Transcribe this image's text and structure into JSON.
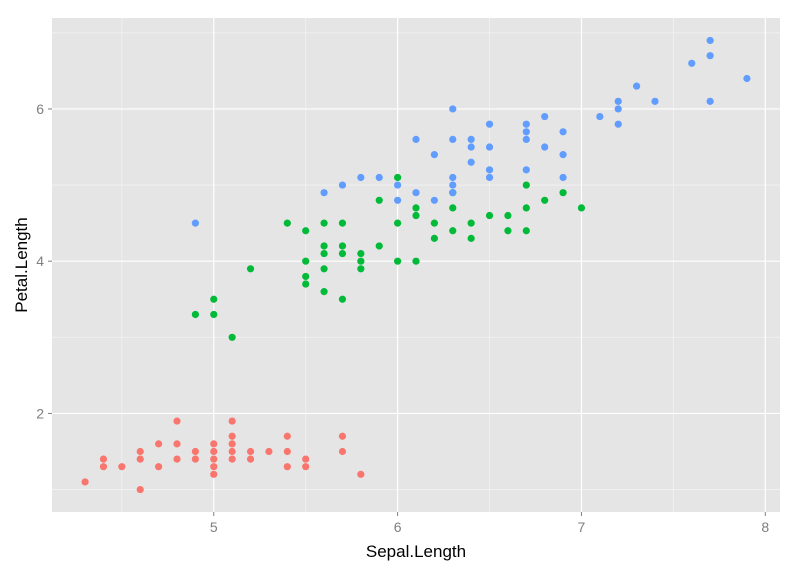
{
  "chart_data": {
    "type": "scatter",
    "title": "",
    "xlabel": "Sepal.Length",
    "ylabel": "Petal.Length",
    "xlim": [
      4.12,
      8.08
    ],
    "ylim": [
      0.705,
      7.195
    ],
    "x_ticks": [
      5,
      6,
      7,
      8
    ],
    "y_ticks": [
      2,
      4,
      6
    ],
    "x_tick_labels": [
      "5",
      "6",
      "7",
      "8"
    ],
    "y_tick_labels": [
      "2",
      "4",
      "6"
    ],
    "grid": true,
    "legend": "none",
    "panel_background": "#e5e5e5",
    "grid_color": "#ffffff",
    "series": [
      {
        "color": "#f8766d",
        "points": [
          [
            4.3,
            1.1
          ],
          [
            4.4,
            1.3
          ],
          [
            4.4,
            1.4
          ],
          [
            4.5,
            1.3
          ],
          [
            4.6,
            1.0
          ],
          [
            4.6,
            1.4
          ],
          [
            4.6,
            1.5
          ],
          [
            4.7,
            1.3
          ],
          [
            4.7,
            1.6
          ],
          [
            4.8,
            1.4
          ],
          [
            4.8,
            1.6
          ],
          [
            4.8,
            1.9
          ],
          [
            4.9,
            1.4
          ],
          [
            4.9,
            1.5
          ],
          [
            5.0,
            1.2
          ],
          [
            5.0,
            1.3
          ],
          [
            5.0,
            1.4
          ],
          [
            5.0,
            1.5
          ],
          [
            5.0,
            1.6
          ],
          [
            5.1,
            1.4
          ],
          [
            5.1,
            1.5
          ],
          [
            5.1,
            1.6
          ],
          [
            5.1,
            1.7
          ],
          [
            5.1,
            1.9
          ],
          [
            5.2,
            1.4
          ],
          [
            5.2,
            1.5
          ],
          [
            5.3,
            1.5
          ],
          [
            5.4,
            1.3
          ],
          [
            5.4,
            1.5
          ],
          [
            5.4,
            1.7
          ],
          [
            5.5,
            1.3
          ],
          [
            5.5,
            1.4
          ],
          [
            5.7,
            1.5
          ],
          [
            5.7,
            1.7
          ],
          [
            5.8,
            1.2
          ]
        ]
      },
      {
        "color": "#00ba38",
        "points": [
          [
            4.9,
            3.3
          ],
          [
            5.0,
            3.3
          ],
          [
            5.0,
            3.5
          ],
          [
            5.1,
            3.0
          ],
          [
            5.2,
            3.9
          ],
          [
            5.4,
            4.5
          ],
          [
            5.5,
            3.7
          ],
          [
            5.5,
            3.8
          ],
          [
            5.5,
            4.0
          ],
          [
            5.5,
            4.4
          ],
          [
            5.6,
            3.6
          ],
          [
            5.6,
            3.9
          ],
          [
            5.6,
            4.1
          ],
          [
            5.6,
            4.2
          ],
          [
            5.6,
            4.5
          ],
          [
            5.7,
            3.5
          ],
          [
            5.7,
            4.1
          ],
          [
            5.7,
            4.2
          ],
          [
            5.7,
            4.5
          ],
          [
            5.8,
            3.9
          ],
          [
            5.8,
            4.0
          ],
          [
            5.8,
            4.1
          ],
          [
            5.9,
            4.2
          ],
          [
            5.9,
            4.8
          ],
          [
            6.0,
            4.0
          ],
          [
            6.0,
            4.5
          ],
          [
            6.0,
            5.1
          ],
          [
            6.1,
            4.0
          ],
          [
            6.1,
            4.6
          ],
          [
            6.1,
            4.7
          ],
          [
            6.2,
            4.3
          ],
          [
            6.2,
            4.5
          ],
          [
            6.3,
            4.4
          ],
          [
            6.3,
            4.7
          ],
          [
            6.3,
            4.9
          ],
          [
            6.4,
            4.3
          ],
          [
            6.4,
            4.5
          ],
          [
            6.5,
            4.6
          ],
          [
            6.6,
            4.4
          ],
          [
            6.6,
            4.6
          ],
          [
            6.7,
            4.4
          ],
          [
            6.7,
            4.7
          ],
          [
            6.7,
            5.0
          ],
          [
            6.8,
            4.8
          ],
          [
            6.9,
            4.9
          ],
          [
            7.0,
            4.7
          ]
        ]
      },
      {
        "color": "#619cff",
        "points": [
          [
            4.9,
            4.5
          ],
          [
            5.6,
            4.9
          ],
          [
            5.7,
            5.0
          ],
          [
            5.8,
            5.1
          ],
          [
            5.9,
            5.1
          ],
          [
            6.0,
            4.8
          ],
          [
            6.0,
            5.0
          ],
          [
            6.1,
            4.9
          ],
          [
            6.1,
            5.6
          ],
          [
            6.2,
            4.8
          ],
          [
            6.2,
            5.4
          ],
          [
            6.3,
            4.9
          ],
          [
            6.3,
            5.0
          ],
          [
            6.3,
            5.1
          ],
          [
            6.3,
            5.6
          ],
          [
            6.3,
            6.0
          ],
          [
            6.4,
            5.3
          ],
          [
            6.4,
            5.5
          ],
          [
            6.4,
            5.6
          ],
          [
            6.5,
            5.1
          ],
          [
            6.5,
            5.2
          ],
          [
            6.5,
            5.5
          ],
          [
            6.5,
            5.8
          ],
          [
            6.7,
            5.2
          ],
          [
            6.7,
            5.6
          ],
          [
            6.7,
            5.7
          ],
          [
            6.7,
            5.8
          ],
          [
            6.8,
            5.5
          ],
          [
            6.8,
            5.9
          ],
          [
            6.9,
            5.1
          ],
          [
            6.9,
            5.4
          ],
          [
            6.9,
            5.7
          ],
          [
            7.1,
            5.9
          ],
          [
            7.2,
            5.8
          ],
          [
            7.2,
            6.0
          ],
          [
            7.2,
            6.1
          ],
          [
            7.3,
            6.3
          ],
          [
            7.4,
            6.1
          ],
          [
            7.6,
            6.6
          ],
          [
            7.7,
            6.1
          ],
          [
            7.7,
            6.7
          ],
          [
            7.7,
            6.9
          ],
          [
            7.9,
            6.4
          ]
        ]
      }
    ]
  }
}
